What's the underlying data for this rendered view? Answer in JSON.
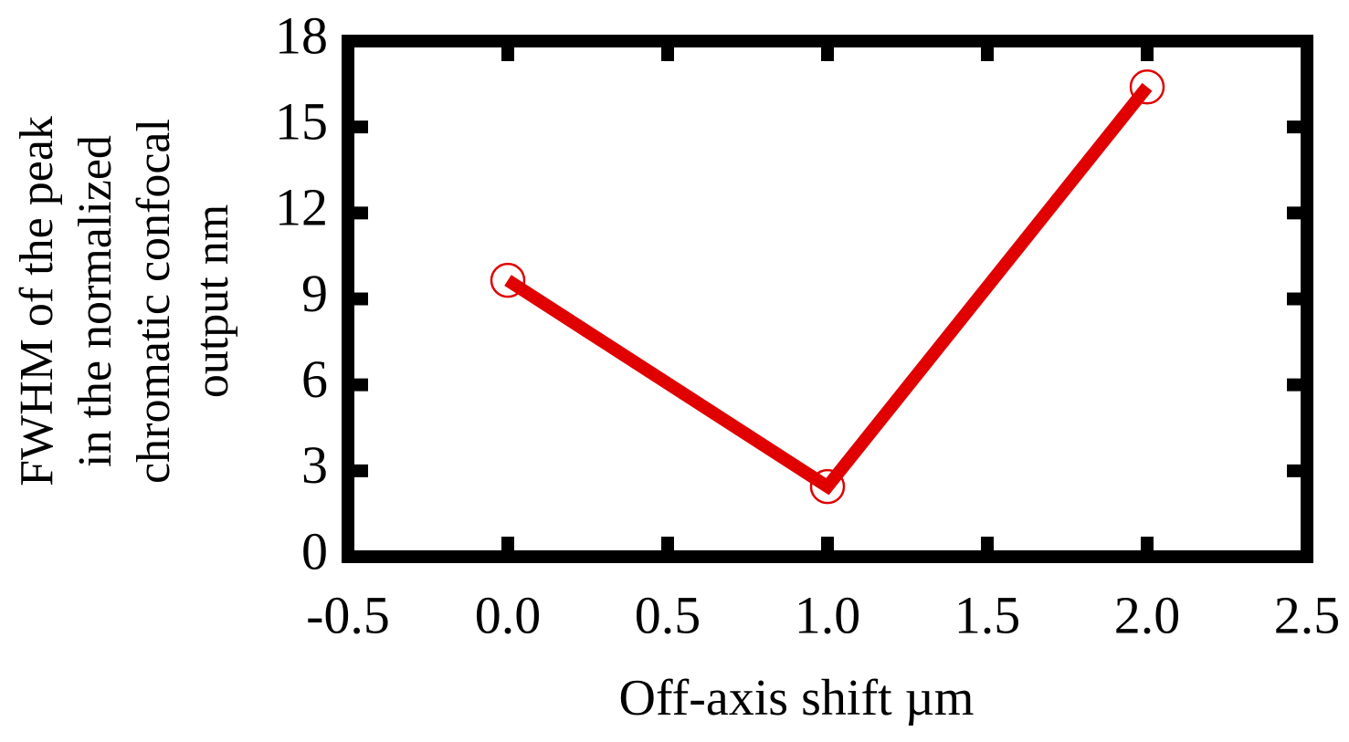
{
  "chart_data": {
    "type": "line",
    "xlabel": "Off-axis shift  µm",
    "ylabel": [
      "FWHM  of the peak",
      "in the normalized",
      "chromatic confocal",
      "output nm"
    ],
    "x": [
      0.0,
      1.0,
      2.0
    ],
    "series": [
      {
        "name": null,
        "color": "#e00000",
        "values": [
          9.65,
          2.45,
          16.4
        ]
      }
    ],
    "xlim": [
      -0.5,
      2.5
    ],
    "xticks": [
      -0.5,
      {
        "value": 0,
        "label": "0.0"
      },
      0.5,
      {
        "value": 1,
        "label": "1.0"
      },
      1.5,
      {
        "value": 2,
        "label": "2.0"
      },
      2.5
    ],
    "ylim": [
      0,
      18
    ],
    "yticks": [
      0,
      3,
      6,
      9,
      12,
      15,
      18
    ],
    "grid": false
  }
}
